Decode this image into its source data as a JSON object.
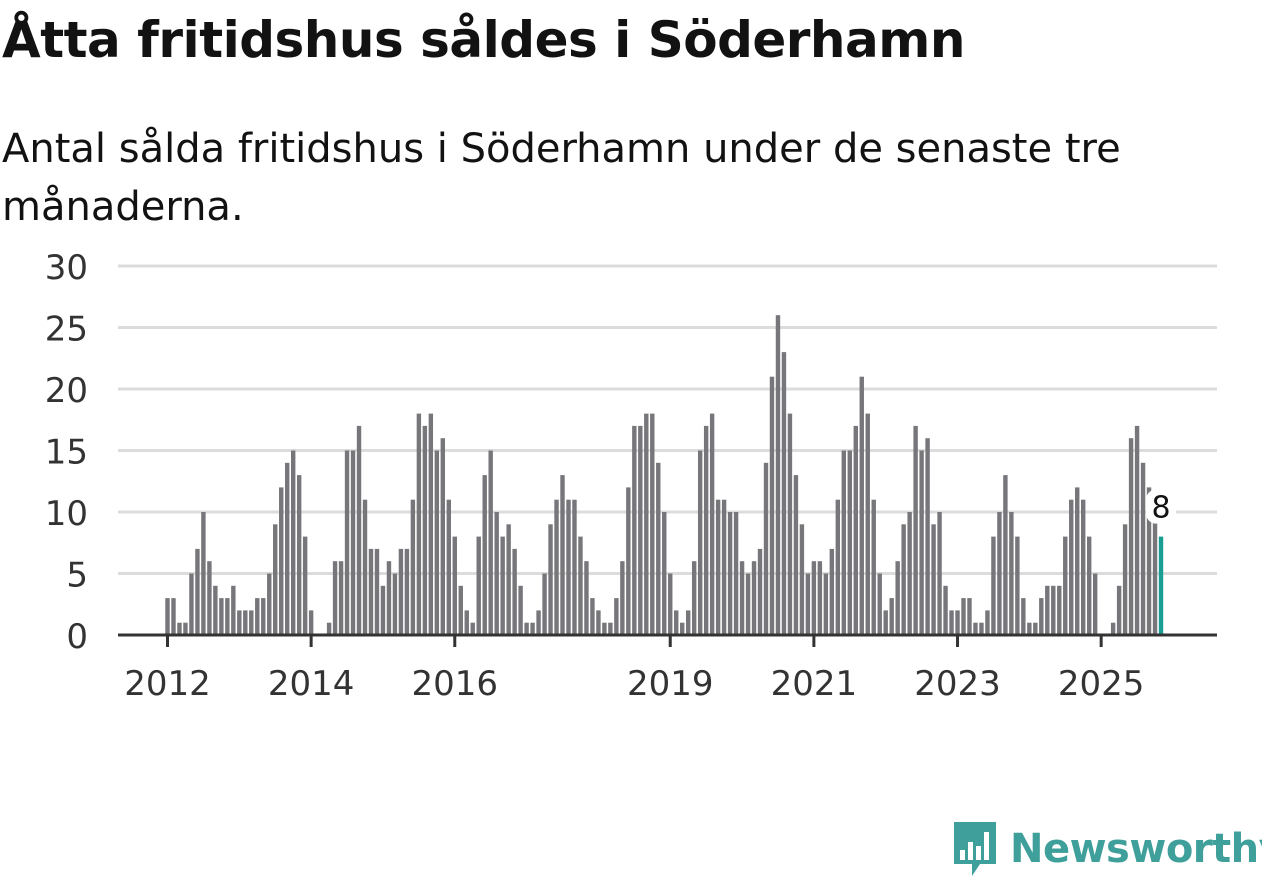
{
  "header": {
    "title": "Åtta fritidshus såldes i Söderhamn",
    "subtitle": "Antal sålda fritidshus i Söderhamn under de senaste tre månaderna."
  },
  "chart_data": {
    "type": "bar",
    "series": [
      {
        "values": [
          3,
          3,
          1,
          1,
          5,
          7,
          10,
          6,
          4,
          3,
          3,
          4,
          2,
          2,
          2,
          3,
          3,
          5,
          9,
          12,
          14,
          15,
          13,
          8,
          2,
          0,
          0,
          1,
          6,
          6,
          15,
          15,
          17,
          11,
          7,
          7,
          4,
          6,
          5,
          7,
          7,
          11,
          18,
          17,
          18,
          15,
          16,
          11,
          8,
          4,
          2,
          1,
          8,
          13,
          15,
          10,
          8,
          9,
          7,
          4,
          1,
          1,
          2,
          5,
          9,
          11,
          13,
          11,
          11,
          8,
          6,
          3,
          2,
          1,
          1,
          3,
          6,
          12,
          17,
          17,
          18,
          18,
          14,
          10,
          5,
          2,
          1,
          2,
          6,
          15,
          17,
          18,
          11,
          11,
          10,
          10,
          6,
          5,
          6,
          7,
          14,
          21,
          26,
          23,
          18,
          13,
          9,
          5,
          6,
          6,
          5,
          7,
          11,
          15,
          15,
          17,
          21,
          18,
          11,
          5,
          2,
          3,
          6,
          9,
          10,
          17,
          15,
          16,
          9,
          10,
          4,
          2,
          2,
          3,
          3,
          1,
          1,
          2,
          8,
          10,
          13,
          10,
          8,
          3,
          1,
          1,
          3,
          4,
          4,
          4,
          8,
          11,
          12,
          11,
          8,
          5,
          0,
          0,
          1,
          4,
          9,
          16,
          17,
          14,
          12,
          10,
          8
        ]
      }
    ],
    "highlight_value": 8,
    "highlight_color": "#1a9e94",
    "bar_color": "#76767b",
    "xtick_labels": [
      "2012",
      "2014",
      "2016",
      "2019",
      "2021",
      "2023",
      "2025"
    ],
    "ytick_labels": [
      "0",
      "5",
      "10",
      "15",
      "20",
      "25",
      "30"
    ],
    "ylim": [
      0,
      30
    ]
  },
  "branding": {
    "logo_text": "Newsworthy",
    "logo_icon": "bar-chart-icon",
    "brand_color": "#3f9f9a"
  }
}
